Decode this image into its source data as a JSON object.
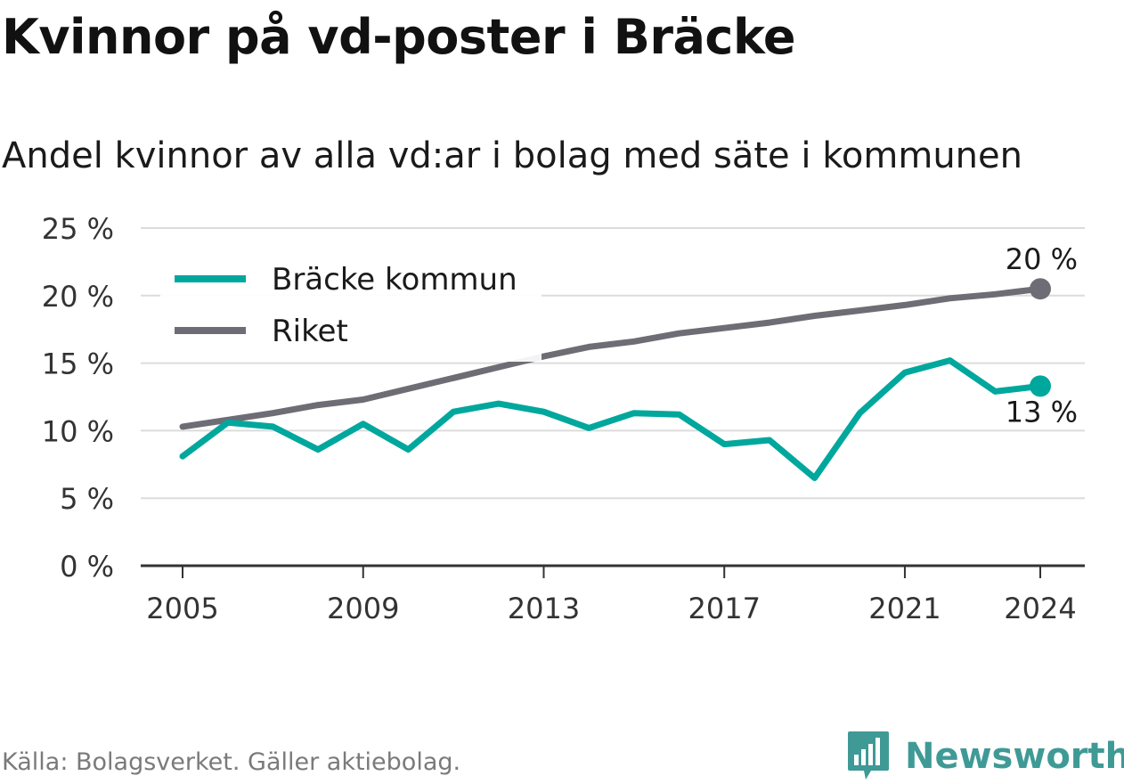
{
  "title": "Kvinnor på vd-poster i Bräcke",
  "subtitle": "Andel kvinnor av alla vd:ar i bolag med säte i kommunen",
  "source": "Källa: Bolagsverket. Gäller aktiebolag.",
  "brand": {
    "name": "Newsworthy",
    "icon": "newsworthy-logo-icon"
  },
  "colors": {
    "braecke": "#00a79d",
    "riket": "#6e6d75",
    "grid": "#dcdcdc",
    "axis": "#333333"
  },
  "chart_data": {
    "type": "line",
    "x": [
      2005,
      2006,
      2007,
      2008,
      2009,
      2010,
      2011,
      2012,
      2013,
      2014,
      2015,
      2016,
      2017,
      2018,
      2019,
      2020,
      2021,
      2022,
      2023,
      2024
    ],
    "series": [
      {
        "name": "Bräcke kommun",
        "color": "#00a79d",
        "values": [
          8.1,
          10.6,
          10.3,
          8.6,
          10.5,
          8.6,
          11.4,
          12.0,
          11.4,
          10.2,
          11.3,
          11.2,
          9.0,
          9.3,
          6.5,
          11.3,
          14.3,
          15.2,
          12.9,
          13.3
        ]
      },
      {
        "name": "Riket",
        "color": "#6e6d75",
        "values": [
          10.3,
          10.8,
          11.3,
          11.9,
          12.3,
          13.1,
          13.9,
          14.7,
          15.5,
          16.2,
          16.6,
          17.2,
          17.6,
          18.0,
          18.5,
          18.9,
          19.3,
          19.8,
          20.1,
          20.5
        ]
      }
    ],
    "end_labels": [
      {
        "series": "Riket",
        "text": "20 %",
        "position": "above"
      },
      {
        "series": "Bräcke kommun",
        "text": "13 %",
        "position": "below"
      }
    ],
    "xticks": [
      2005,
      2009,
      2013,
      2017,
      2021,
      2024
    ],
    "xtick_labels": [
      "2005",
      "2009",
      "2013",
      "2017",
      "2021",
      "2024"
    ],
    "yticks": [
      0,
      5,
      10,
      15,
      20,
      25
    ],
    "ytick_labels": [
      "0 %",
      "5 %",
      "10 %",
      "15 %",
      "20 %",
      "25 %"
    ],
    "ylim": [
      0,
      25
    ],
    "xlim": [
      2005,
      2024
    ],
    "grid": true,
    "legend": {
      "placement": "top-left",
      "entries": [
        "Bräcke kommun",
        "Riket"
      ]
    },
    "xlabel": "",
    "ylabel": ""
  }
}
